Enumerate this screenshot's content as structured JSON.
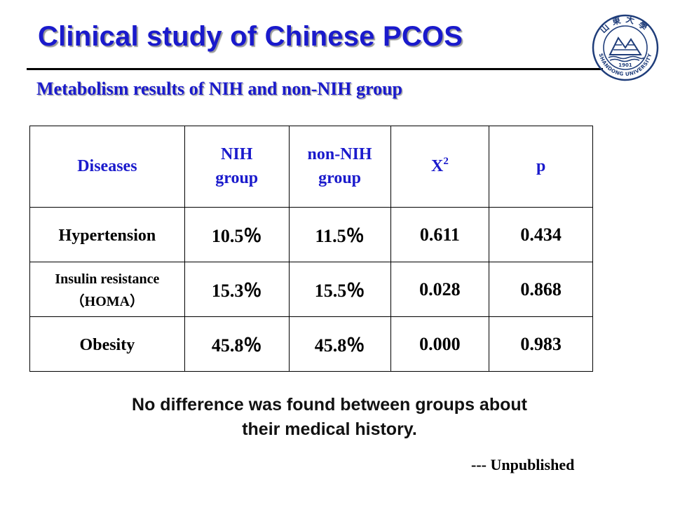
{
  "header": {
    "title": "Clinical study of Chinese PCOS",
    "subtitle": "Metabolism results of NIH and non-NIH group"
  },
  "logo": {
    "text_top": "山東大學",
    "text_bottom": "SHANDONG UNIVERSITY",
    "year": "1901",
    "color": "#1f3d7a"
  },
  "table": {
    "headers": {
      "diseases": "Diseases",
      "nih_line1": "NIH",
      "nih_line2": "group",
      "non_nih_line1": "non-NIH",
      "non_nih_line2": "group",
      "chi_base": "X",
      "chi_sup": "2",
      "p": "p"
    },
    "rows": [
      {
        "label": "Hypertension",
        "nih": "10.5％",
        "non_nih": "11.5％",
        "chi2": "0.611",
        "p": "0.434"
      },
      {
        "label_line1": "Insulin resistance",
        "label_line2": "（HOMA）",
        "nih": "15.3％",
        "non_nih": "15.5％",
        "chi2": "0.028",
        "p": "0.868"
      },
      {
        "label": "Obesity",
        "nih": "45.8％",
        "non_nih": "45.8％",
        "chi2": "0.000",
        "p": "0.983"
      }
    ]
  },
  "conclusion": {
    "line1": "No difference was found between groups about",
    "line2": "their medical history."
  },
  "note": "--- Unpublished",
  "colors": {
    "title_blue": "#1a1acc",
    "text_black": "#000000"
  }
}
